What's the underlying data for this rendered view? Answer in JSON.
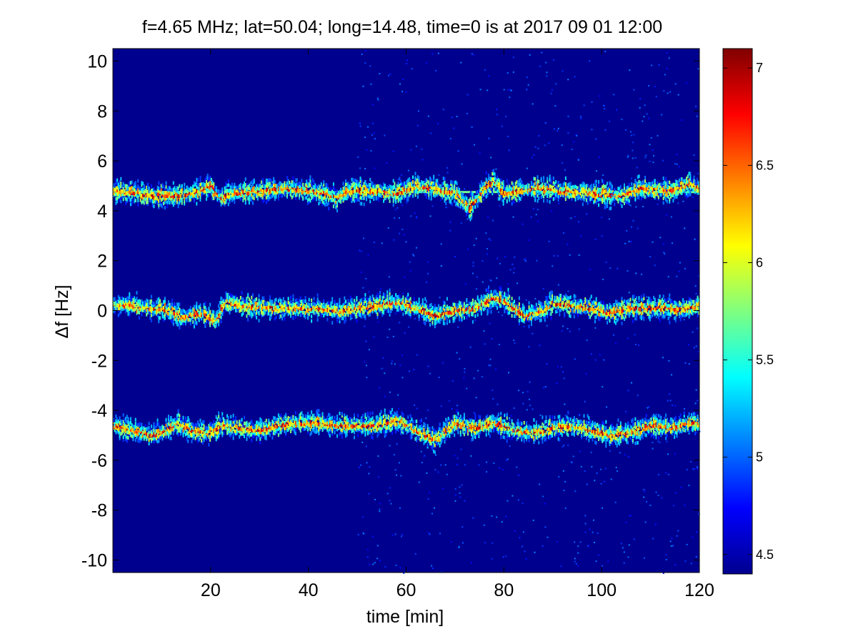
{
  "chart_data": {
    "type": "heatmap",
    "title": "f=4.65 MHz;  lat=50.04; long=14.48, time=0 is at 2017 09 01 12:00",
    "xlabel": "time [min]",
    "ylabel": "Δf [Hz]",
    "xlim": [
      0,
      120
    ],
    "ylim": [
      -10.5,
      10.5
    ],
    "x_ticks": [
      20,
      40,
      60,
      80,
      100,
      120
    ],
    "y_ticks": [
      10,
      8,
      6,
      4,
      2,
      0,
      -2,
      -4,
      -6,
      -8,
      -10
    ],
    "colorbar": {
      "colormap": "jet",
      "range": [
        4.4,
        7.1
      ],
      "ticks": [
        4.5,
        5,
        5.5,
        6,
        6.5,
        7
      ]
    },
    "background_value": 4.5,
    "carrier_lines": [
      {
        "points": [
          [
            0,
            4.8
          ],
          [
            4,
            4.75
          ],
          [
            8,
            4.6
          ],
          [
            12,
            4.6
          ],
          [
            16,
            4.7
          ],
          [
            20,
            5.0
          ],
          [
            22,
            4.5
          ],
          [
            24,
            4.7
          ],
          [
            30,
            4.8
          ],
          [
            36,
            4.9
          ],
          [
            42,
            4.75
          ],
          [
            46,
            4.5
          ],
          [
            48,
            4.8
          ],
          [
            54,
            4.8
          ],
          [
            58,
            4.7
          ],
          [
            62,
            5.0
          ],
          [
            66,
            4.9
          ],
          [
            70,
            4.7
          ],
          [
            73,
            4.1
          ],
          [
            76,
            4.9
          ],
          [
            78,
            5.2
          ],
          [
            80,
            4.7
          ],
          [
            86,
            4.9
          ],
          [
            92,
            4.8
          ],
          [
            98,
            4.7
          ],
          [
            104,
            4.6
          ],
          [
            108,
            4.9
          ],
          [
            114,
            4.8
          ],
          [
            118,
            5.1
          ],
          [
            120,
            4.9
          ]
        ],
        "constant_line_value": 4.75
      },
      {
        "points": [
          [
            0,
            0.25
          ],
          [
            4,
            0.2
          ],
          [
            8,
            0.1
          ],
          [
            12,
            0.0
          ],
          [
            14,
            -0.3
          ],
          [
            18,
            -0.1
          ],
          [
            21,
            -0.4
          ],
          [
            23,
            0.35
          ],
          [
            26,
            0.2
          ],
          [
            32,
            0.1
          ],
          [
            38,
            0.1
          ],
          [
            42,
            0.1
          ],
          [
            46,
            0.0
          ],
          [
            50,
            0.1
          ],
          [
            54,
            0.2
          ],
          [
            58,
            0.35
          ],
          [
            62,
            0.1
          ],
          [
            66,
            -0.2
          ],
          [
            70,
            0.0
          ],
          [
            74,
            0.1
          ],
          [
            78,
            0.5
          ],
          [
            80,
            0.4
          ],
          [
            84,
            -0.2
          ],
          [
            88,
            0.0
          ],
          [
            90,
            0.3
          ],
          [
            94,
            0.2
          ],
          [
            98,
            0.1
          ],
          [
            102,
            -0.1
          ],
          [
            106,
            0.1
          ],
          [
            112,
            0.1
          ],
          [
            116,
            0.05
          ],
          [
            120,
            0.2
          ]
        ]
      },
      {
        "points": [
          [
            0,
            -4.6
          ],
          [
            4,
            -4.8
          ],
          [
            8,
            -5.0
          ],
          [
            11,
            -4.8
          ],
          [
            13,
            -4.5
          ],
          [
            16,
            -4.8
          ],
          [
            20,
            -4.9
          ],
          [
            22,
            -4.6
          ],
          [
            26,
            -4.7
          ],
          [
            30,
            -4.8
          ],
          [
            34,
            -4.6
          ],
          [
            38,
            -4.5
          ],
          [
            42,
            -4.5
          ],
          [
            46,
            -4.6
          ],
          [
            50,
            -4.6
          ],
          [
            54,
            -4.6
          ],
          [
            58,
            -4.4
          ],
          [
            62,
            -4.8
          ],
          [
            66,
            -5.2
          ],
          [
            70,
            -4.5
          ],
          [
            74,
            -4.7
          ],
          [
            78,
            -4.5
          ],
          [
            82,
            -4.8
          ],
          [
            86,
            -4.9
          ],
          [
            90,
            -4.7
          ],
          [
            94,
            -4.6
          ],
          [
            98,
            -4.8
          ],
          [
            102,
            -5.0
          ],
          [
            106,
            -4.9
          ],
          [
            110,
            -4.6
          ],
          [
            114,
            -4.7
          ],
          [
            118,
            -4.5
          ],
          [
            120,
            -4.5
          ]
        ]
      }
    ]
  }
}
